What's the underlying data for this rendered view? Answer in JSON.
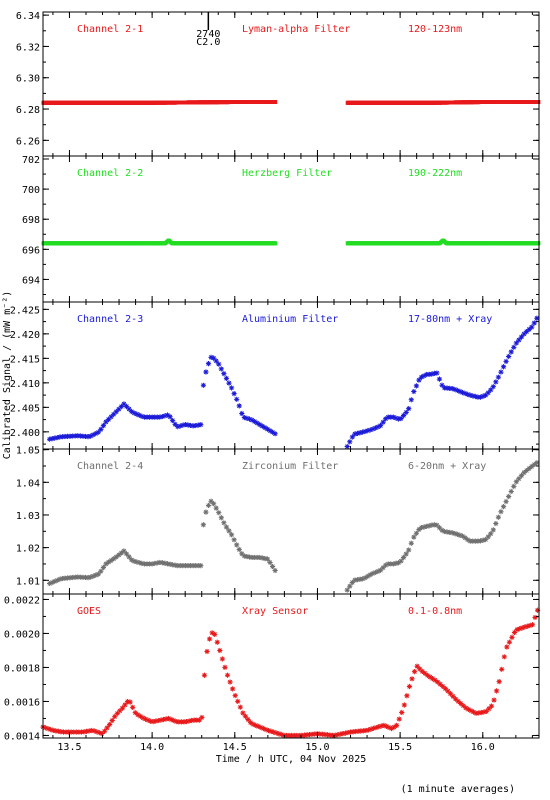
{
  "chart_data": {
    "type": "scatter",
    "xlabel": "Time / h UTC, 04 Nov 2025",
    "ylabel": "Calibrated Signal / (mW m⁻²)",
    "footnote": "(1 minute averages)",
    "xlim": [
      13.34,
      16.34
    ],
    "xticks": [
      "13.5",
      "14.0",
      "14.5",
      "15.0",
      "15.5",
      "16.0"
    ],
    "xtick_values": [
      13.5,
      14.0,
      14.5,
      15.0,
      15.5,
      16.0
    ],
    "marker_annotation": {
      "x": 14.34,
      "lines": [
        "2740",
        "C2.0"
      ]
    },
    "panels": [
      {
        "name": "Channel 2-1",
        "filter": "Lyman-alpha Filter",
        "band": "120-123nm",
        "color": "#e8191b",
        "marker": "dot",
        "ylim": [
          6.25,
          6.342
        ],
        "yticks": [
          "6.26",
          "6.28",
          "6.30",
          "6.32",
          "6.34"
        ],
        "ytick_values": [
          6.26,
          6.28,
          6.3,
          6.32,
          6.34
        ],
        "segments": [
          {
            "x": [
              13.34,
              14.0,
              14.5,
              14.75
            ],
            "y": [
              6.284,
              6.284,
              6.2845,
              6.2845
            ]
          },
          {
            "x": [
              15.18,
              15.7,
              16.0,
              16.34
            ],
            "y": [
              6.284,
              6.284,
              6.2845,
              6.2845
            ]
          }
        ]
      },
      {
        "name": "Channel 2-2",
        "filter": "Herzberg Filter",
        "band": "190-222nm",
        "color": "#22dd22",
        "marker": "dot",
        "ylim": [
          692.5,
          702.2
        ],
        "yticks": [
          "694",
          "696",
          "698",
          "700",
          "702"
        ],
        "ytick_values": [
          694,
          696,
          698,
          700,
          702
        ],
        "segments": [
          {
            "x": [
              13.34,
              14.08,
              14.1,
              14.12,
              14.75
            ],
            "y": [
              696.4,
              696.4,
              696.6,
              696.4,
              696.4
            ]
          },
          {
            "x": [
              15.18,
              15.74,
              15.76,
              15.78,
              16.34
            ],
            "y": [
              696.4,
              696.4,
              696.6,
              696.4,
              696.4
            ]
          }
        ]
      },
      {
        "name": "Channel 2-3",
        "filter": "Aluminium Filter",
        "band": "17-80nm + Xray",
        "color": "#1a1ad8",
        "marker": "star",
        "ylim": [
          2.3965,
          2.4265
        ],
        "yticks": [
          "2.400",
          "2.405",
          "2.410",
          "2.415",
          "2.420",
          "2.425"
        ],
        "ytick_values": [
          2.4,
          2.405,
          2.41,
          2.415,
          2.42,
          2.425
        ],
        "segments": [
          {
            "x": [
              13.38,
              13.45,
              13.55,
              13.62,
              13.68,
              13.72,
              13.78,
              13.83,
              13.88,
              13.95,
              14.0,
              14.05,
              14.1,
              14.15,
              14.2,
              14.25,
              14.3,
              14.31,
              14.33,
              14.36,
              14.4,
              14.44,
              14.48,
              14.52,
              14.55,
              14.6,
              14.65,
              14.7,
              14.75
            ],
            "y": [
              2.3985,
              2.399,
              2.3992,
              2.399,
              2.4,
              2.402,
              2.404,
              2.4057,
              2.404,
              2.403,
              2.403,
              2.403,
              2.4035,
              2.401,
              2.4015,
              2.4012,
              2.4015,
              2.4095,
              2.413,
              2.4155,
              2.414,
              2.4115,
              2.409,
              2.406,
              2.403,
              2.4025,
              2.4015,
              2.4005,
              2.3995
            ]
          },
          {
            "x": [
              15.18,
              15.22,
              15.28,
              15.33,
              15.38,
              15.42,
              15.46,
              15.5,
              15.55,
              15.58,
              15.62,
              15.66,
              15.7,
              15.72,
              15.76,
              15.82,
              15.88,
              15.92,
              15.98,
              16.02,
              16.06,
              16.1,
              16.15,
              16.2,
              16.25,
              16.3,
              16.34
            ],
            "y": [
              2.397,
              2.3995,
              2.4,
              2.4005,
              2.4012,
              2.403,
              2.403,
              2.4025,
              2.4045,
              2.408,
              2.411,
              2.4117,
              2.4118,
              2.4122,
              2.409,
              2.4088,
              2.408,
              2.4075,
              2.407,
              2.4075,
              2.409,
              2.4115,
              2.415,
              2.418,
              2.42,
              2.4215,
              2.424
            ]
          }
        ]
      },
      {
        "name": "Channel 2-4",
        "filter": "Zirconium Filter",
        "band": "6-20nm + Xray",
        "color": "#707070",
        "marker": "star",
        "ylim": [
          1.0058,
          1.0502
        ],
        "yticks": [
          "1.01",
          "1.02",
          "1.03",
          "1.04",
          "1.05"
        ],
        "ytick_values": [
          1.01,
          1.02,
          1.03,
          1.04,
          1.05
        ],
        "segments": [
          {
            "x": [
              13.38,
              13.45,
              13.55,
              13.62,
              13.68,
              13.72,
              13.78,
              13.83,
              13.88,
              13.95,
              14.0,
              14.05,
              14.1,
              14.15,
              14.2,
              14.25,
              14.3,
              14.31,
              14.33,
              14.36,
              14.4,
              14.44,
              14.48,
              14.52,
              14.55,
              14.6,
              14.65,
              14.7,
              14.75
            ],
            "y": [
              1.009,
              1.0105,
              1.011,
              1.0108,
              1.012,
              1.015,
              1.017,
              1.019,
              1.016,
              1.015,
              1.015,
              1.0155,
              1.015,
              1.0145,
              1.0145,
              1.0145,
              1.0145,
              1.027,
              1.032,
              1.0345,
              1.031,
              1.027,
              1.024,
              1.02,
              1.0175,
              1.017,
              1.017,
              1.0165,
              1.0125
            ]
          },
          {
            "x": [
              15.18,
              15.22,
              15.28,
              15.33,
              15.38,
              15.42,
              15.46,
              15.5,
              15.55,
              15.58,
              15.62,
              15.66,
              15.7,
              15.72,
              15.76,
              15.82,
              15.88,
              15.92,
              15.98,
              16.02,
              16.06,
              16.1,
              16.15,
              16.2,
              16.25,
              16.3,
              16.34
            ],
            "y": [
              1.007,
              1.01,
              1.0105,
              1.012,
              1.013,
              1.015,
              1.015,
              1.0155,
              1.019,
              1.023,
              1.026,
              1.0265,
              1.027,
              1.027,
              1.025,
              1.0245,
              1.0235,
              1.022,
              1.022,
              1.0225,
              1.025,
              1.03,
              1.035,
              1.04,
              1.043,
              1.045,
              1.0465
            ]
          }
        ]
      },
      {
        "name": "GOES",
        "filter": "Xray Sensor",
        "band": "0.1-0.8nm",
        "color": "#e8191b",
        "marker": "star",
        "ylim": [
          0.001385,
          0.002232
        ],
        "yticks": [
          "0.0014",
          "0.0016",
          "0.0018",
          "0.0020",
          "0.0022"
        ],
        "ytick_values": [
          0.0014,
          0.0016,
          0.0018,
          0.002,
          0.0022
        ],
        "segments": [
          {
            "x": [
              13.34,
              13.4,
              13.46,
              13.52,
              13.58,
              13.64,
              13.7,
              13.74,
              13.78,
              13.82,
              13.86,
              13.9,
              13.95,
              14.0,
              14.05,
              14.1,
              14.15,
              14.2,
              14.25,
              14.3,
              14.32,
              14.34,
              14.37,
              14.4,
              14.45,
              14.5,
              14.55,
              14.6,
              14.7,
              14.8,
              14.9,
              15.0,
              15.1,
              15.2,
              15.3,
              15.4,
              15.45,
              15.48,
              15.52,
              15.56,
              15.6,
              15.63,
              15.67,
              15.72,
              15.78,
              15.84,
              15.9,
              15.96,
              16.02,
              16.06,
              16.1,
              16.14,
              16.2,
              16.26,
              16.3,
              16.34
            ],
            "y": [
              0.00145,
              0.00143,
              0.00142,
              0.00142,
              0.00142,
              0.00143,
              0.00141,
              0.00146,
              0.00152,
              0.00156,
              0.00161,
              0.00153,
              0.0015,
              0.00148,
              0.00149,
              0.0015,
              0.00148,
              0.00148,
              0.00149,
              0.00149,
              0.00181,
              0.00195,
              0.00202,
              0.00193,
              0.00177,
              0.00164,
              0.00153,
              0.00147,
              0.00143,
              0.0014,
              0.0014,
              0.00141,
              0.0014,
              0.00142,
              0.00143,
              0.00146,
              0.00144,
              0.00146,
              0.00156,
              0.0017,
              0.00181,
              0.00178,
              0.00175,
              0.00172,
              0.00167,
              0.00161,
              0.00156,
              0.00153,
              0.00154,
              0.00158,
              0.00172,
              0.00191,
              0.00202,
              0.00204,
              0.00205,
              0.00216
            ]
          }
        ]
      }
    ]
  }
}
